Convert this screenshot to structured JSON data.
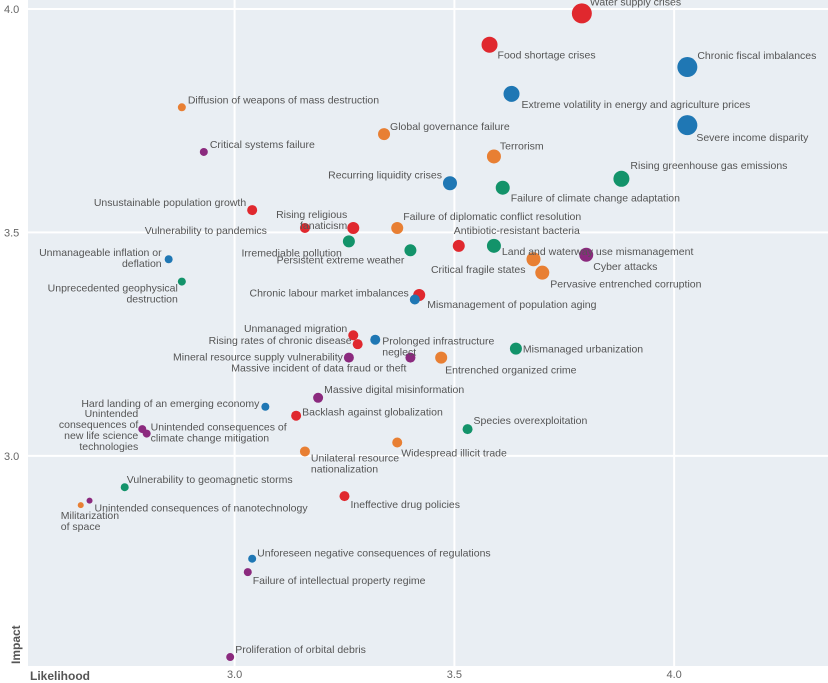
{
  "chart_data": {
    "type": "scatter",
    "xlabel": "Likelihood",
    "ylabel": "Impact",
    "xlim": [
      2.53,
      4.35
    ],
    "ylim": [
      2.53,
      4.02
    ],
    "x_ticks": [
      "3.0",
      "3.5",
      "4.0"
    ],
    "y_ticks": [
      "3.0",
      "3.5",
      "4.0"
    ],
    "grid": true,
    "background": "#e9eef3",
    "colors": {
      "economic": "#1f77b4",
      "environmental": "#13936a",
      "geopolitical": "#e87f33",
      "societal": "#e0282e",
      "technological": "#8b2a7e"
    },
    "points": [
      {
        "label": "Water supply crises",
        "x": 3.79,
        "y": 3.99,
        "size": 10,
        "group": "societal"
      },
      {
        "label": "Food shortage crises",
        "x": 3.58,
        "y": 3.92,
        "size": 8,
        "group": "societal"
      },
      {
        "label": "Chronic fiscal imbalances",
        "x": 4.03,
        "y": 3.87,
        "size": 10,
        "group": "economic"
      },
      {
        "label": "Extreme volatility in energy and agriculture prices",
        "x": 3.63,
        "y": 3.81,
        "size": 8,
        "group": "economic"
      },
      {
        "label": "Diffusion of weapons of mass destruction",
        "x": 2.88,
        "y": 3.78,
        "size": 4,
        "group": "geopolitical"
      },
      {
        "label": "Global governance failure",
        "x": 3.34,
        "y": 3.72,
        "size": 6,
        "group": "geopolitical"
      },
      {
        "label": "Severe income disparity",
        "x": 4.03,
        "y": 3.74,
        "size": 10,
        "group": "economic"
      },
      {
        "label": "Critical systems failure",
        "x": 2.93,
        "y": 3.68,
        "size": 4,
        "group": "technological"
      },
      {
        "label": "Terrorism",
        "x": 3.59,
        "y": 3.67,
        "size": 7,
        "group": "geopolitical"
      },
      {
        "label": "Rising greenhouse gas emissions",
        "x": 3.88,
        "y": 3.62,
        "size": 8,
        "group": "environmental"
      },
      {
        "label": "Recurring liquidity crises",
        "x": 3.49,
        "y": 3.61,
        "size": 7,
        "group": "economic"
      },
      {
        "label": "Failure of climate change adaptation",
        "x": 3.61,
        "y": 3.6,
        "size": 7,
        "group": "environmental"
      },
      {
        "label": "Unsustainable population growth",
        "x": 3.04,
        "y": 3.55,
        "size": 5,
        "group": "societal"
      },
      {
        "label": "Rising religious fanaticism",
        "x": 3.27,
        "y": 3.51,
        "size": 6,
        "group": "societal"
      },
      {
        "label": "Failure of diplomatic conflict resolution",
        "x": 3.37,
        "y": 3.51,
        "size": 6,
        "group": "geopolitical"
      },
      {
        "label": "Vulnerability to pandemics",
        "x": 3.16,
        "y": 3.51,
        "size": 5,
        "group": "societal"
      },
      {
        "label": "Irremediable pollution",
        "x": 3.26,
        "y": 3.48,
        "size": 6,
        "group": "environmental"
      },
      {
        "label": "Antibiotic-resistant bacteria",
        "x": 3.51,
        "y": 3.47,
        "size": 6,
        "group": "societal"
      },
      {
        "label": "Land and waterway use mismanagement",
        "x": 3.59,
        "y": 3.47,
        "size": 7,
        "group": "environmental"
      },
      {
        "label": "Persistent extreme weather",
        "x": 3.4,
        "y": 3.46,
        "size": 6,
        "group": "environmental"
      },
      {
        "label": "Unmanageable inflation or deflation",
        "x": 2.85,
        "y": 3.44,
        "size": 4,
        "group": "economic"
      },
      {
        "label": "Cyber attacks",
        "x": 3.8,
        "y": 3.45,
        "size": 7,
        "group": "technological"
      },
      {
        "label": "Critical fragile states",
        "x": 3.68,
        "y": 3.44,
        "size": 7,
        "group": "geopolitical"
      },
      {
        "label": "Pervasive entrenched corruption",
        "x": 3.7,
        "y": 3.41,
        "size": 7,
        "group": "geopolitical"
      },
      {
        "label": "Unprecedented geophysical destruction",
        "x": 2.88,
        "y": 3.39,
        "size": 4,
        "group": "environmental"
      },
      {
        "label": "Chronic labour market imbalances",
        "x": 3.41,
        "y": 3.35,
        "size": 5,
        "group": "economic"
      },
      {
        "label": "Mismanagement of population aging",
        "x": 3.42,
        "y": 3.36,
        "size": 6,
        "group": "societal"
      },
      {
        "label": "Unmanaged migration",
        "x": 3.27,
        "y": 3.27,
        "size": 5,
        "group": "societal"
      },
      {
        "label": "Prolonged infrastructure neglect",
        "x": 3.32,
        "y": 3.26,
        "size": 5,
        "group": "economic"
      },
      {
        "label": "Rising rates of chronic disease",
        "x": 3.28,
        "y": 3.25,
        "size": 5,
        "group": "societal"
      },
      {
        "label": "Mismanaged urbanization",
        "x": 3.64,
        "y": 3.24,
        "size": 6,
        "group": "environmental"
      },
      {
        "label": "Mineral resource supply vulnerability",
        "x": 3.26,
        "y": 3.22,
        "size": 5,
        "group": "technological"
      },
      {
        "label": "Massive incident of data fraud or theft",
        "x": 3.4,
        "y": 3.22,
        "size": 5,
        "group": "technological"
      },
      {
        "label": "Entrenched organized crime",
        "x": 3.47,
        "y": 3.22,
        "size": 6,
        "group": "geopolitical"
      },
      {
        "label": "Massive digital misinformation",
        "x": 3.19,
        "y": 3.13,
        "size": 5,
        "group": "technological"
      },
      {
        "label": "Hard landing of an emerging economy",
        "x": 3.07,
        "y": 3.11,
        "size": 4,
        "group": "economic"
      },
      {
        "label": "Backlash against globalization",
        "x": 3.14,
        "y": 3.09,
        "size": 5,
        "group": "societal"
      },
      {
        "label": "Species overexploitation",
        "x": 3.53,
        "y": 3.06,
        "size": 5,
        "group": "environmental"
      },
      {
        "label": "Unintended consequences of new life science technologies",
        "x": 2.79,
        "y": 3.06,
        "size": 4,
        "group": "technological"
      },
      {
        "label": "Unintended consequences of climate change mitigation",
        "x": 2.8,
        "y": 3.05,
        "size": 4,
        "group": "technological"
      },
      {
        "label": "Widespread illicit trade",
        "x": 3.37,
        "y": 3.03,
        "size": 5,
        "group": "geopolitical"
      },
      {
        "label": "Unilateral resource nationalization",
        "x": 3.16,
        "y": 3.01,
        "size": 5,
        "group": "geopolitical"
      },
      {
        "label": "Vulnerability to geomagnetic storms",
        "x": 2.75,
        "y": 2.93,
        "size": 4,
        "group": "environmental"
      },
      {
        "label": "Ineffective drug policies",
        "x": 3.25,
        "y": 2.91,
        "size": 5,
        "group": "societal"
      },
      {
        "label": "Unintended consequences of nanotechnology",
        "x": 2.67,
        "y": 2.9,
        "size": 3,
        "group": "technological"
      },
      {
        "label": "Militarization of space",
        "x": 2.65,
        "y": 2.89,
        "size": 3,
        "group": "geopolitical"
      },
      {
        "label": "Unforeseen negative consequences of regulations",
        "x": 3.04,
        "y": 2.77,
        "size": 4,
        "group": "economic"
      },
      {
        "label": "Failure of intellectual property regime",
        "x": 3.03,
        "y": 2.74,
        "size": 4,
        "group": "technological"
      },
      {
        "label": "Proliferation of orbital debris",
        "x": 2.99,
        "y": 2.55,
        "size": 4,
        "group": "technological"
      }
    ]
  }
}
